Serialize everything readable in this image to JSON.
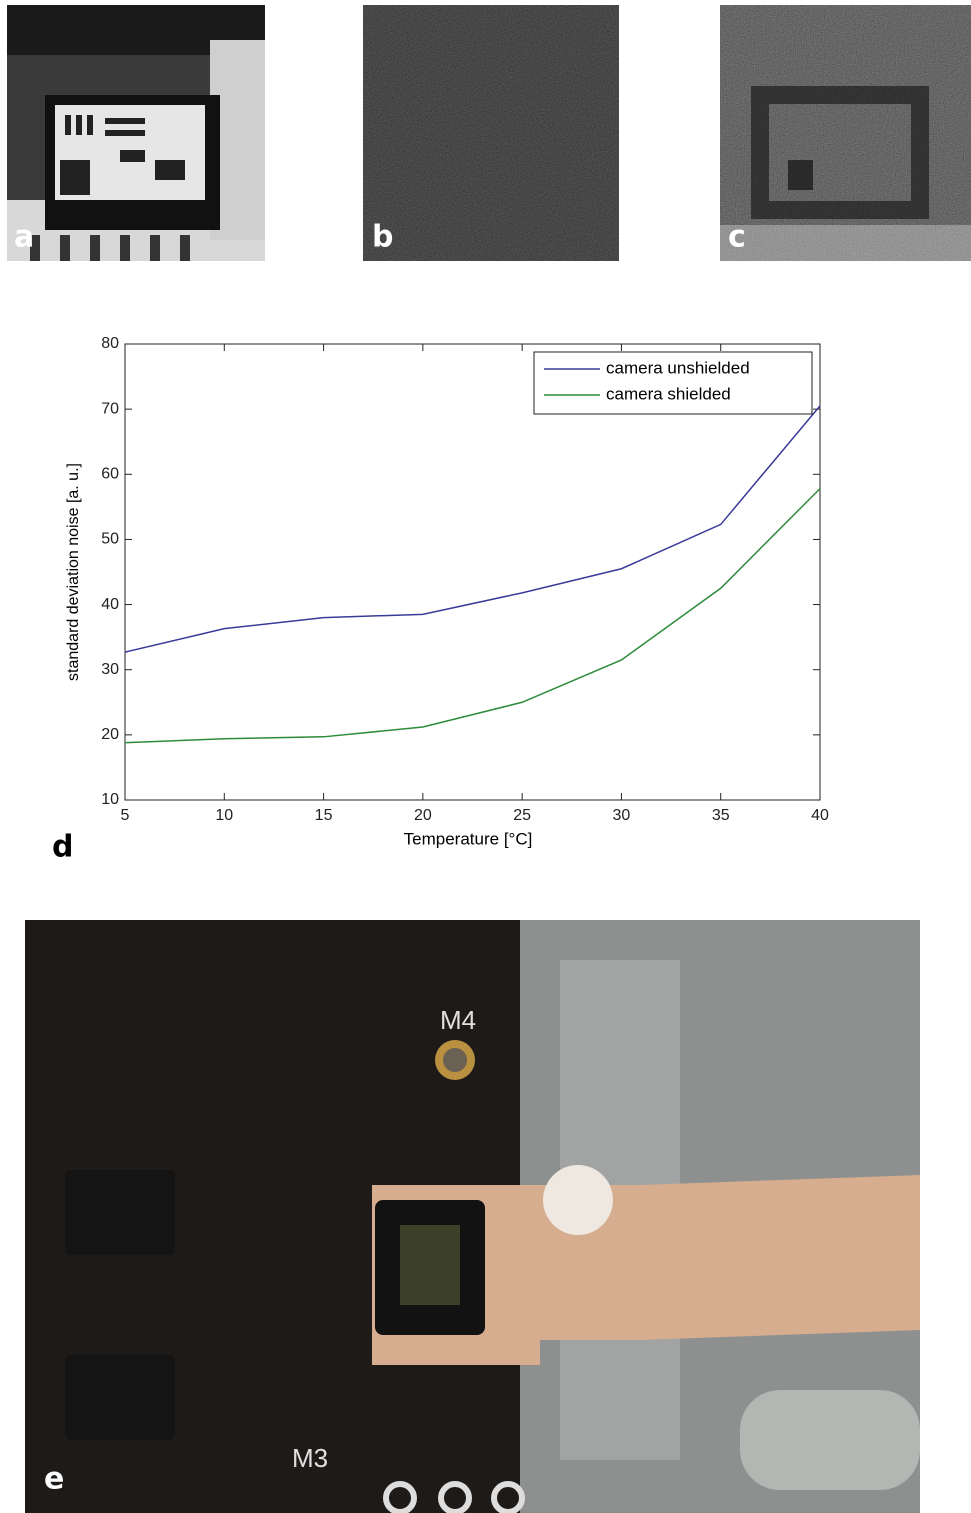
{
  "panels": {
    "a": "a",
    "b": "b",
    "c": "c",
    "d": "d",
    "e": "e"
  },
  "photo_labels": [
    "M4",
    "M3"
  ],
  "chart_data": {
    "type": "line",
    "xlabel": "Temperature [°C]",
    "ylabel": "standard deviation noise [a. u.]",
    "x": [
      5,
      10,
      15,
      20,
      25,
      30,
      35,
      40
    ],
    "series": [
      {
        "name": "camera unshielded",
        "color": "#3a3a9a",
        "values": [
          32.7,
          36.3,
          38,
          38.5,
          41.8,
          45.5,
          52.3,
          70.5
        ]
      },
      {
        "name": "camera shielded",
        "color": "#2e8b3a",
        "values": [
          18.8,
          19.4,
          19.7,
          21.2,
          25,
          31.5,
          42.5,
          57.8
        ]
      }
    ],
    "xlim": [
      5,
      40
    ],
    "ylim": [
      10,
      80
    ],
    "xticks": [
      5,
      10,
      15,
      20,
      25,
      30,
      35,
      40
    ],
    "yticks": [
      10,
      20,
      30,
      40,
      50,
      60,
      70,
      80
    ],
    "grid": false,
    "legend": "upper right"
  }
}
